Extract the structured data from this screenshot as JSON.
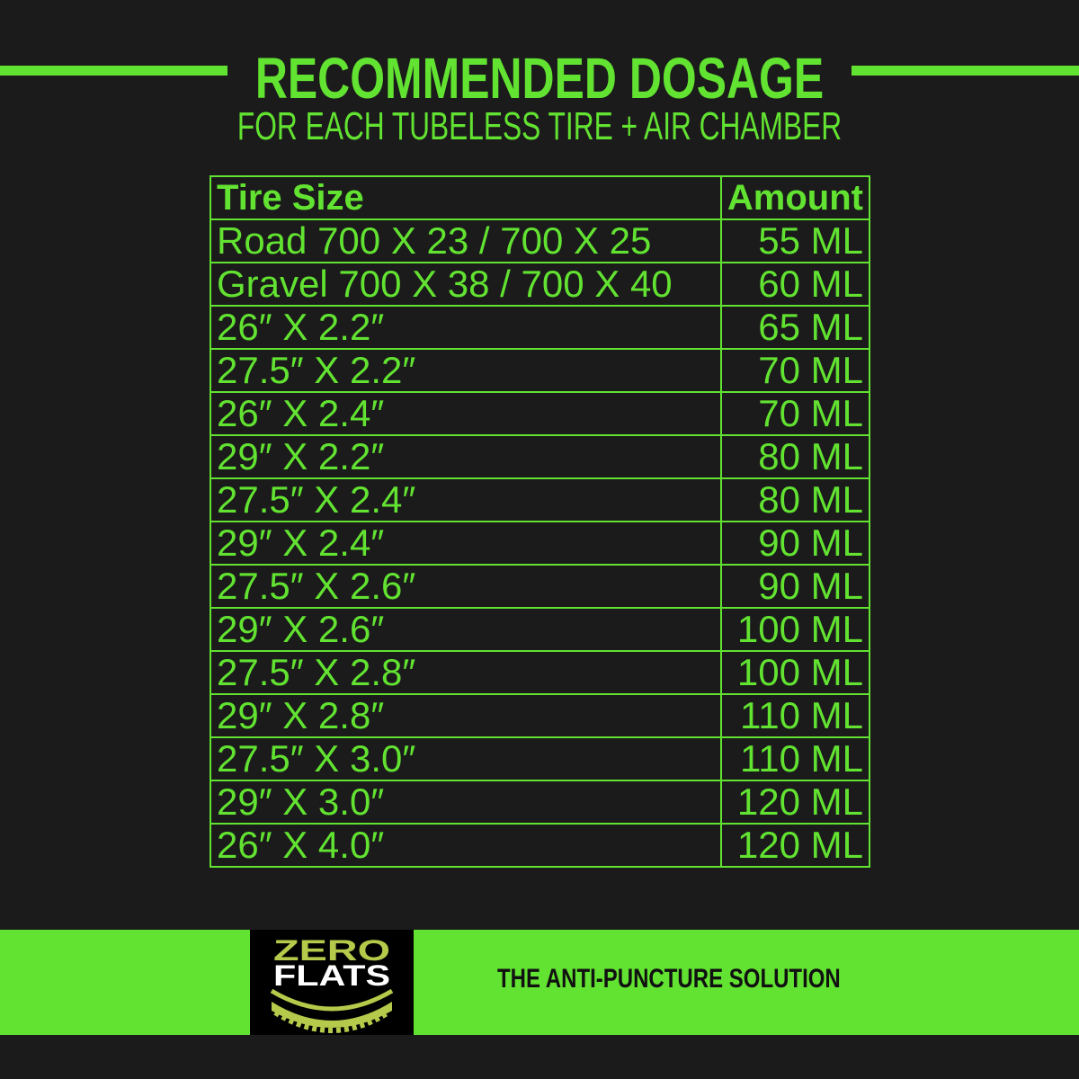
{
  "header": {
    "title": "RECOMMENDED DOSAGE",
    "subtitle": "FOR EACH TUBELESS TIRE + AIR CHAMBER"
  },
  "table": {
    "columns": [
      "Tire Size",
      "Amount"
    ],
    "rows": [
      [
        "Road 700 X 23 / 700 X 25",
        "55 ML"
      ],
      [
        "Gravel 700 X 38 / 700 X 40",
        "60 ML"
      ],
      [
        "26″ X 2.2″",
        "65 ML"
      ],
      [
        "27.5″ X 2.2″",
        "70 ML"
      ],
      [
        "26″ X 2.4″",
        "70 ML"
      ],
      [
        "29″ X 2.2″",
        "80 ML"
      ],
      [
        "27.5″ X 2.4″",
        "80 ML"
      ],
      [
        "29″ X 2.4″",
        "90 ML"
      ],
      [
        "27.5″ X 2.6″",
        "90 ML"
      ],
      [
        "29″ X 2.6″",
        "100 ML"
      ],
      [
        "27.5″ X 2.8″",
        "100 ML"
      ],
      [
        "29″ X 2.8″",
        "110 ML"
      ],
      [
        "27.5″ X 3.0″",
        "110 ML"
      ],
      [
        "29″ X 3.0″",
        "120 ML"
      ],
      [
        "26″ X 4.0″",
        "120 ML"
      ]
    ]
  },
  "footer": {
    "logo_line1": "ZERO",
    "logo_line2": "FLATS",
    "tagline": "THE ANTI-PUNCTURE SOLUTION"
  },
  "colors": {
    "background": "#1b1b1b",
    "accent": "#62e231",
    "logo_olive": "#b5c94a"
  }
}
